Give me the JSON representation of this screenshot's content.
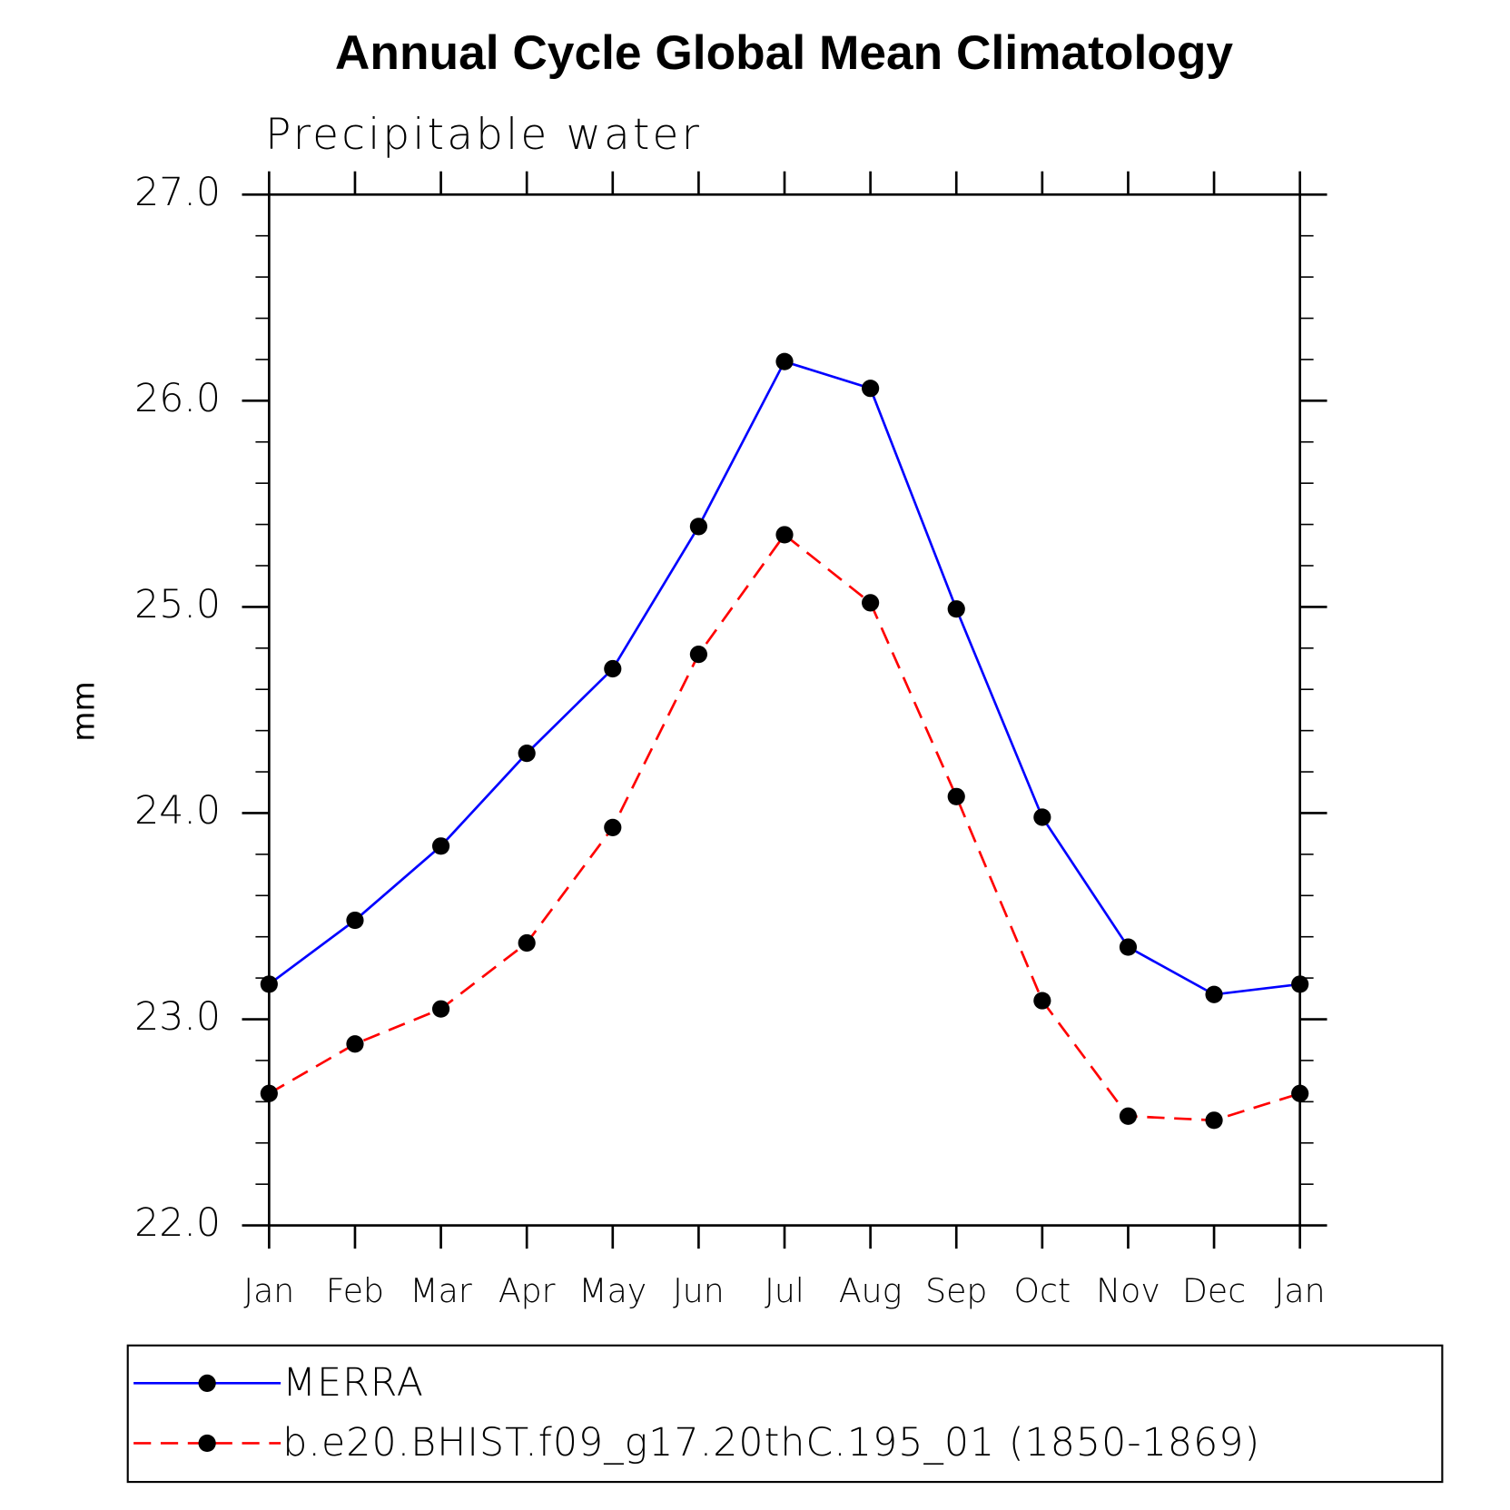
{
  "chart_data": {
    "type": "line",
    "title": "Annual Cycle Global Mean Climatology",
    "subtitle": "Precipitable water",
    "y_label": "mm",
    "categories": [
      "Jan",
      "Feb",
      "Mar",
      "Apr",
      "May",
      "Jun",
      "Jul",
      "Aug",
      "Sep",
      "Oct",
      "Nov",
      "Dec",
      "Jan"
    ],
    "series": [
      {
        "name": "MERRA",
        "color": "#0000ff",
        "dashed": false,
        "values": [
          23.17,
          23.48,
          23.84,
          24.29,
          24.7,
          25.39,
          26.19,
          26.06,
          24.99,
          23.98,
          23.35,
          23.12,
          23.17
        ]
      },
      {
        "name": "b.e20.BHIST.f09_g17.20thC.195_01 (1850-1869)",
        "color": "#ff0000",
        "dashed": true,
        "values": [
          22.64,
          22.88,
          23.05,
          23.37,
          23.93,
          24.77,
          25.35,
          25.02,
          24.08,
          23.09,
          22.53,
          22.51,
          22.64
        ]
      }
    ],
    "ylim": [
      22,
      27
    ],
    "yticks": [
      {
        "value": 22,
        "label": "22.0"
      },
      {
        "value": 23,
        "label": "23.0"
      },
      {
        "value": 24,
        "label": "24.0"
      },
      {
        "value": 25,
        "label": "25.0"
      },
      {
        "value": 26,
        "label": "26.0"
      },
      {
        "value": 27,
        "label": "27.0"
      }
    ],
    "yminorticks": [
      22.2,
      22.4,
      22.6,
      22.8,
      23.2,
      23.4,
      23.6,
      23.8,
      24.2,
      24.4,
      24.6,
      24.8,
      25.2,
      25.4,
      25.6,
      25.8,
      26.2,
      26.4,
      26.6,
      26.8
    ],
    "marker_color": "#000000",
    "legend": "bottom"
  }
}
